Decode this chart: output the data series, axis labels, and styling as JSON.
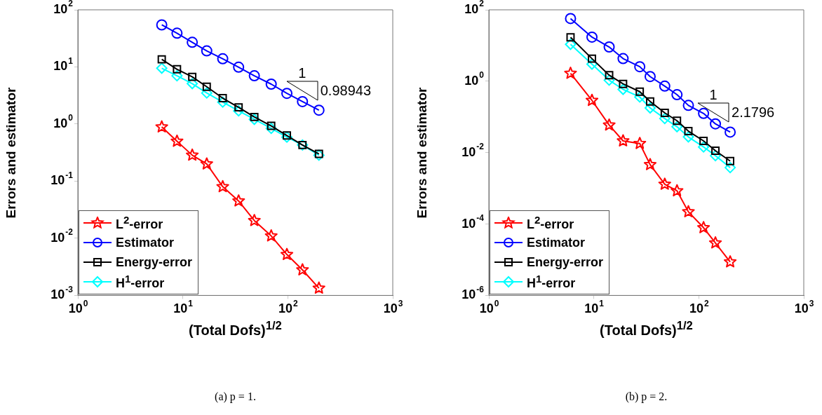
{
  "chart_data": [
    {
      "type": "line",
      "xlabel": "(Total Dofs)$^{1/2}$",
      "ylabel": "Errors and estimator",
      "log": "xy",
      "legend": "bottom left",
      "grid": false,
      "xlim": [
        1,
        1000
      ],
      "xticks": [
        {
          "value": 1,
          "label": "10$^{0}$"
        },
        {
          "value": 10,
          "label": "10$^{1}$"
        },
        {
          "value": 100,
          "label": "10$^{2}$"
        },
        {
          "value": 1000,
          "label": "10$^{3}$"
        }
      ],
      "ylim": [
        0.001,
        100
      ],
      "yticks": [
        {
          "value": 0.001,
          "label": "10$^{-3}$"
        },
        {
          "value": 0.01,
          "label": "10$^{-2}$"
        },
        {
          "value": 0.1,
          "label": "10$^{-1}$"
        },
        {
          "value": 1,
          "label": "10$^{0}$"
        },
        {
          "value": 10,
          "label": "10$^{1}$"
        },
        {
          "value": 100,
          "label": "10$^{2}$"
        }
      ],
      "x": [
        6.3,
        8.8,
        12.3,
        16.9,
        24,
        34,
        48,
        69.5,
        98,
        138,
        198
      ],
      "series": [
        {
          "name": "L$^{2}$-error",
          "color": "#ff0000",
          "marker": "star",
          "values": [
            0.89,
            0.5,
            0.285,
            0.2,
            0.08,
            0.045,
            0.0204,
            0.011,
            0.0052,
            0.0028,
            0.00134
          ]
        },
        {
          "name": "Estimator",
          "color": "#0000ff",
          "marker": "circle",
          "values": [
            54.5,
            39,
            27,
            19.1,
            13.9,
            9.9,
            7.0,
            5.0,
            3.45,
            2.47,
            1.75
          ]
        },
        {
          "name": "Energy-error",
          "color": "#000000",
          "marker": "square",
          "values": [
            13.6,
            9.1,
            6.7,
            4.5,
            2.84,
            1.96,
            1.33,
            0.93,
            0.63,
            0.43,
            0.3
          ]
        },
        {
          "name": "H$^{1}$-error",
          "color": "#00ffff",
          "marker": "diamond",
          "values": [
            9.5,
            7.0,
            5.1,
            3.5,
            2.42,
            1.7,
            1.21,
            0.84,
            0.59,
            0.43,
            0.285
          ]
        }
      ],
      "annotations": [
        "1",
        "0.98943",
        "(a) p = 1."
      ]
    },
    {
      "type": "line",
      "xlabel": "(Total Dofs)$^{1/2}$",
      "ylabel": "Errors and estimator",
      "log": "xy",
      "legend": "bottom left",
      "grid": false,
      "xlim": [
        1,
        1000
      ],
      "xticks": [
        {
          "value": 1,
          "label": "10$^{0}$"
        },
        {
          "value": 10,
          "label": "10$^{1}$"
        },
        {
          "value": 100,
          "label": "10$^{2}$"
        },
        {
          "value": 1000,
          "label": "10$^{3}$"
        }
      ],
      "ylim": [
        1e-06,
        100
      ],
      "yticks": [
        {
          "value": 1e-06,
          "label": "10$^{-6}$"
        },
        {
          "value": 0.0001,
          "label": "10$^{-4}$"
        },
        {
          "value": 0.01,
          "label": "10$^{-2}$"
        },
        {
          "value": 1,
          "label": "10$^{0}$"
        },
        {
          "value": 100,
          "label": "10$^{2}$"
        }
      ],
      "x": [
        6.0,
        9.6,
        14,
        19,
        27.4,
        34.4,
        47.4,
        62,
        79.6,
        111,
        144,
        199
      ],
      "series": [
        {
          "name": "L$^{2}$-error",
          "color": "#ff0000",
          "marker": "star",
          "values": [
            1.66,
            0.29,
            0.059,
            0.0213,
            0.018,
            0.0046,
            0.0013,
            0.00085,
            0.00022,
            7.9e-05,
            2.95e-05,
            8.7e-06
          ]
        },
        {
          "name": "Estimator",
          "color": "#0000ff",
          "marker": "circle",
          "values": [
            57,
            17.2,
            9.1,
            4.3,
            2.55,
            1.35,
            0.73,
            0.42,
            0.21,
            0.125,
            0.064,
            0.0376
          ]
        },
        {
          "name": "Energy-error",
          "color": "#000000",
          "marker": "square",
          "values": [
            17,
            4.3,
            1.48,
            0.84,
            0.51,
            0.27,
            0.13,
            0.078,
            0.04,
            0.0213,
            0.0113,
            0.0058
          ]
        },
        {
          "name": "H$^{1}$-error",
          "color": "#00ffff",
          "marker": "diamond",
          "values": [
            10.8,
            3.0,
            1.07,
            0.59,
            0.36,
            0.178,
            0.09,
            0.053,
            0.0275,
            0.0144,
            0.0082,
            0.0038
          ]
        }
      ],
      "annotations": [
        "1",
        "2.1796",
        "(b) p = 2."
      ]
    }
  ]
}
